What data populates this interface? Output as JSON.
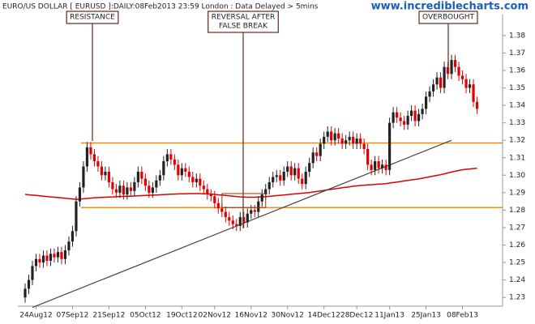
{
  "chart_data": {
    "type": "candlestick",
    "title": "EURO/US DOLLAR [ EURUSD ]:DAILY:08Feb2013 23:59 London : Data Delayed > 5mins",
    "watermark": "www.incrediblecharts.com",
    "annotations": [
      {
        "lines": [
          "RESISTANCE"
        ]
      },
      {
        "lines": [
          "REVERSAL AFTER",
          "FALSE BREAK"
        ]
      },
      {
        "lines": [
          "OVERBOUGHT"
        ]
      }
    ],
    "up_color": "#222222",
    "down_color": "#e00000",
    "open": [
      1.23,
      1.235,
      1.24,
      1.248,
      1.252,
      1.25,
      1.254,
      1.251,
      1.255,
      1.253,
      1.256,
      1.252,
      1.257,
      1.262,
      1.268,
      1.285,
      1.293,
      1.305,
      1.316,
      1.312,
      1.308,
      1.305,
      1.3,
      1.302,
      1.296,
      1.292,
      1.29,
      1.294,
      1.289,
      1.293,
      1.291,
      1.296,
      1.302,
      1.298,
      1.294,
      1.29,
      1.293,
      1.297,
      1.3,
      1.308,
      1.312,
      1.309,
      1.306,
      1.3,
      1.304,
      1.302,
      1.299,
      1.296,
      1.298,
      1.294,
      1.292,
      1.289,
      1.288,
      1.284,
      1.281,
      1.279,
      1.276,
      1.274,
      1.272,
      1.271,
      1.276,
      1.273,
      1.278,
      1.28,
      1.279,
      1.285,
      1.289,
      1.292,
      1.296,
      1.299,
      1.3,
      1.297,
      1.302,
      1.305,
      1.3,
      1.304,
      1.298,
      1.295,
      1.302,
      1.307,
      1.313,
      1.311,
      1.318,
      1.322,
      1.325,
      1.32,
      1.324,
      1.321,
      1.318,
      1.32,
      1.322,
      1.318,
      1.321,
      1.318,
      1.315,
      1.306,
      1.303,
      1.308,
      1.304,
      1.306,
      1.303,
      1.33,
      1.336,
      1.333,
      1.331,
      1.329,
      1.334,
      1.337,
      1.331,
      1.335,
      1.338,
      1.345,
      1.348,
      1.352,
      1.356,
      1.35,
      1.362,
      1.358,
      1.366,
      1.362,
      1.357,
      1.355,
      1.35,
      1.352,
      1.342
    ],
    "high": [
      1.238,
      1.243,
      1.251,
      1.255,
      1.255,
      1.257,
      1.257,
      1.258,
      1.258,
      1.259,
      1.259,
      1.26,
      1.265,
      1.271,
      1.288,
      1.296,
      1.308,
      1.319,
      1.319,
      1.315,
      1.311,
      1.308,
      1.305,
      1.305,
      1.299,
      1.295,
      1.297,
      1.297,
      1.296,
      1.296,
      1.299,
      1.305,
      1.305,
      1.301,
      1.297,
      1.296,
      1.3,
      1.303,
      1.311,
      1.315,
      1.315,
      1.312,
      1.309,
      1.307,
      1.307,
      1.305,
      1.302,
      1.301,
      1.301,
      1.297,
      1.295,
      1.292,
      1.291,
      1.287,
      1.284,
      1.282,
      1.279,
      1.277,
      1.275,
      1.279,
      1.279,
      1.281,
      1.283,
      1.283,
      1.288,
      1.292,
      1.295,
      1.299,
      1.302,
      1.303,
      1.303,
      1.305,
      1.308,
      1.308,
      1.307,
      1.307,
      1.301,
      1.305,
      1.31,
      1.316,
      1.316,
      1.321,
      1.325,
      1.328,
      1.328,
      1.327,
      1.327,
      1.324,
      1.323,
      1.325,
      1.325,
      1.324,
      1.324,
      1.321,
      1.318,
      1.309,
      1.311,
      1.311,
      1.309,
      1.309,
      1.333,
      1.339,
      1.339,
      1.336,
      1.334,
      1.337,
      1.34,
      1.34,
      1.338,
      1.341,
      1.348,
      1.351,
      1.355,
      1.359,
      1.359,
      1.365,
      1.365,
      1.369,
      1.369,
      1.365,
      1.36,
      1.358,
      1.355,
      1.355,
      1.345
    ],
    "low": [
      1.227,
      1.232,
      1.237,
      1.245,
      1.247,
      1.247,
      1.248,
      1.248,
      1.25,
      1.25,
      1.249,
      1.249,
      1.254,
      1.259,
      1.265,
      1.282,
      1.29,
      1.302,
      1.309,
      1.305,
      1.302,
      1.297,
      1.297,
      1.293,
      1.289,
      1.287,
      1.287,
      1.286,
      1.286,
      1.288,
      1.288,
      1.293,
      1.295,
      1.291,
      1.287,
      1.287,
      1.29,
      1.294,
      1.297,
      1.305,
      1.306,
      1.303,
      1.297,
      1.297,
      1.299,
      1.296,
      1.293,
      1.293,
      1.291,
      1.289,
      1.286,
      1.285,
      1.281,
      1.278,
      1.276,
      1.273,
      1.271,
      1.269,
      1.268,
      1.268,
      1.27,
      1.27,
      1.275,
      1.276,
      1.276,
      1.282,
      1.286,
      1.289,
      1.293,
      1.296,
      1.294,
      1.294,
      1.299,
      1.297,
      1.297,
      1.295,
      1.292,
      1.292,
      1.299,
      1.304,
      1.308,
      1.308,
      1.315,
      1.319,
      1.317,
      1.317,
      1.318,
      1.315,
      1.315,
      1.317,
      1.315,
      1.315,
      1.315,
      1.312,
      1.303,
      1.3,
      1.3,
      1.301,
      1.301,
      1.3,
      1.3,
      1.327,
      1.33,
      1.328,
      1.326,
      1.326,
      1.331,
      1.328,
      1.328,
      1.332,
      1.335,
      1.342,
      1.345,
      1.349,
      1.347,
      1.347,
      1.355,
      1.355,
      1.359,
      1.354,
      1.352,
      1.347,
      1.347,
      1.339,
      1.335
    ],
    "close": [
      1.235,
      1.24,
      1.248,
      1.252,
      1.25,
      1.254,
      1.251,
      1.255,
      1.253,
      1.256,
      1.252,
      1.257,
      1.262,
      1.268,
      1.285,
      1.293,
      1.305,
      1.316,
      1.312,
      1.308,
      1.305,
      1.3,
      1.302,
      1.296,
      1.292,
      1.29,
      1.294,
      1.289,
      1.293,
      1.291,
      1.296,
      1.302,
      1.298,
      1.294,
      1.29,
      1.293,
      1.297,
      1.3,
      1.308,
      1.312,
      1.309,
      1.306,
      1.3,
      1.304,
      1.302,
      1.299,
      1.296,
      1.298,
      1.294,
      1.292,
      1.289,
      1.288,
      1.284,
      1.281,
      1.279,
      1.276,
      1.274,
      1.272,
      1.271,
      1.276,
      1.273,
      1.278,
      1.28,
      1.279,
      1.285,
      1.289,
      1.292,
      1.296,
      1.299,
      1.3,
      1.297,
      1.302,
      1.305,
      1.3,
      1.304,
      1.298,
      1.295,
      1.302,
      1.307,
      1.313,
      1.311,
      1.318,
      1.322,
      1.325,
      1.32,
      1.324,
      1.321,
      1.318,
      1.32,
      1.322,
      1.318,
      1.321,
      1.318,
      1.315,
      1.306,
      1.303,
      1.308,
      1.304,
      1.306,
      1.303,
      1.33,
      1.336,
      1.333,
      1.331,
      1.329,
      1.334,
      1.337,
      1.331,
      1.335,
      1.338,
      1.345,
      1.348,
      1.352,
      1.356,
      1.35,
      1.362,
      1.358,
      1.366,
      1.362,
      1.357,
      1.355,
      1.35,
      1.352,
      1.342,
      1.338
    ],
    "moving_average": {
      "color": "#dd0000",
      "values": [
        1.289,
        1.2888,
        1.2886,
        1.2884,
        1.2882,
        1.288,
        1.2878,
        1.2876,
        1.2874,
        1.2872,
        1.287,
        1.2868,
        1.2866,
        1.2864,
        1.2862,
        1.2863,
        1.2865,
        1.2867,
        1.2869,
        1.2871,
        1.2872,
        1.2873,
        1.2874,
        1.2875,
        1.2876,
        1.2877,
        1.2878,
        1.2879,
        1.288,
        1.288,
        1.2881,
        1.2882,
        1.2883,
        1.2884,
        1.2885,
        1.2886,
        1.2887,
        1.2888,
        1.2889,
        1.289,
        1.2891,
        1.2892,
        1.2893,
        1.2894,
        1.2894,
        1.2895,
        1.2895,
        1.2895,
        1.2895,
        1.2894,
        1.2893,
        1.2892,
        1.289,
        1.2888,
        1.2886,
        1.2884,
        1.2882,
        1.288,
        1.2878,
        1.2876,
        1.2875,
        1.2874,
        1.2874,
        1.2874,
        1.2875,
        1.2876,
        1.2877,
        1.2879,
        1.2881,
        1.2883,
        1.2885,
        1.2887,
        1.2889,
        1.2891,
        1.2893,
        1.2895,
        1.2897,
        1.2899,
        1.2901,
        1.2904,
        1.2907,
        1.291,
        1.2913,
        1.2916,
        1.2919,
        1.2922,
        1.2925,
        1.2928,
        1.2931,
        1.2934,
        1.2937,
        1.2939,
        1.2941,
        1.2943,
        1.2945,
        1.2946,
        1.2947,
        1.2949,
        1.295,
        1.2952,
        1.2955,
        1.2958,
        1.2961,
        1.2964,
        1.2967,
        1.297,
        1.2973,
        1.2976,
        1.2979,
        1.2983,
        1.2987,
        1.2991,
        1.2995,
        1.2999,
        1.3003,
        1.3008,
        1.3013,
        1.3018,
        1.3023,
        1.3027,
        1.3031,
        1.3034,
        1.3036,
        1.3038,
        1.304
      ]
    },
    "levels": {
      "color": "#ff8c00",
      "values": [
        1.3185,
        1.2815
      ]
    },
    "trendline": {
      "color": "#444444",
      "x": [
        2,
        117
      ],
      "y": [
        1.2243,
        1.32
      ]
    },
    "xlim": [
      -2,
      131
    ],
    "xticks": [
      {
        "value": 3,
        "label": "24Aug12"
      },
      {
        "value": 13,
        "label": "07Sep12"
      },
      {
        "value": 23,
        "label": "21Sep12"
      },
      {
        "value": 33,
        "label": "05Oct12"
      },
      {
        "value": 43,
        "label": "19Oct12"
      },
      {
        "value": 52,
        "label": "02Nov12"
      },
      {
        "value": 62,
        "label": "16Nov12"
      },
      {
        "value": 72,
        "label": "30Nov12"
      },
      {
        "value": 82,
        "label": "14Dec12"
      },
      {
        "value": 91,
        "label": "28Dec12"
      },
      {
        "value": 100,
        "label": "11Jan13"
      },
      {
        "value": 110,
        "label": "25Jan13"
      },
      {
        "value": 120,
        "label": "08Feb13"
      }
    ],
    "ylim": [
      1.225,
      1.392
    ],
    "yticks": [
      1.23,
      1.24,
      1.25,
      1.26,
      1.27,
      1.28,
      1.29,
      {
        "value": 1.3,
        "label": "1.30"
      },
      1.31,
      1.32,
      1.33,
      1.34,
      1.35,
      1.36,
      1.37,
      1.38
    ]
  }
}
